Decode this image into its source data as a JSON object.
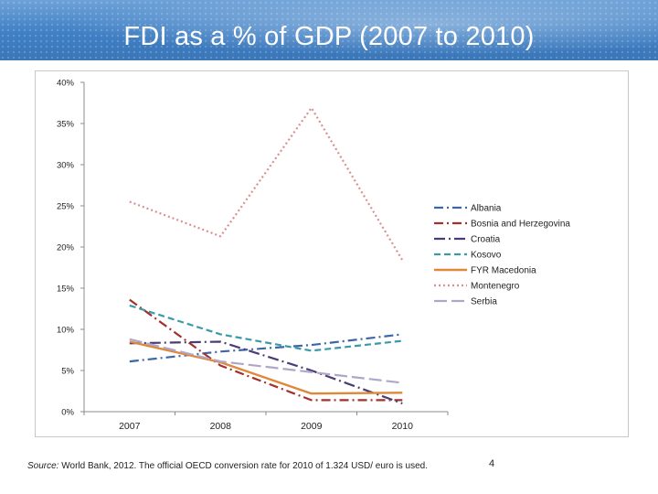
{
  "slide": {
    "title": "FDI as a % of GDP (2007 to 2010)",
    "source_label": "Source:",
    "source_text": "World Bank, 2012. The official OECD conversion rate for 2010 of 1.324 USD/ euro is used.",
    "page_number": "4"
  },
  "chart_data": {
    "type": "line",
    "title": "",
    "xlabel": "",
    "ylabel": "",
    "categories": [
      "2007",
      "2008",
      "2009",
      "2010"
    ],
    "ylim": [
      0,
      40
    ],
    "yticks": [
      "0%",
      "5%",
      "10%",
      "15%",
      "20%",
      "25%",
      "30%",
      "35%",
      "40%"
    ],
    "grid": false,
    "legend_position": "right",
    "series": [
      {
        "name": "Albania",
        "values": [
          6.1,
          7.3,
          8.1,
          9.4
        ],
        "color": "#3c66a8",
        "dash": "10 4 2 4"
      },
      {
        "name": "Bosnia and Herzegovina",
        "values": [
          13.6,
          5.6,
          1.4,
          1.4
        ],
        "color": "#a3302c",
        "dash": "10 4 2 4"
      },
      {
        "name": "Croatia",
        "values": [
          8.3,
          8.5,
          5.0,
          1.0
        ],
        "color": "#4d3c73",
        "dash": "12 4 2 4"
      },
      {
        "name": "Kosovo",
        "values": [
          12.9,
          9.4,
          7.4,
          8.6
        ],
        "color": "#3a9aa6",
        "dash": "7 4"
      },
      {
        "name": "FYR Macedonia",
        "values": [
          8.5,
          6.0,
          2.2,
          2.3
        ],
        "color": "#e0883a",
        "dash": ""
      },
      {
        "name": "Montenegro",
        "values": [
          25.5,
          21.3,
          36.9,
          18.4
        ],
        "color": "#d99090",
        "dash": "2 3"
      },
      {
        "name": "Serbia",
        "values": [
          8.8,
          6.1,
          4.8,
          3.5
        ],
        "color": "#b0a6c8",
        "dash": "14 5"
      }
    ]
  }
}
